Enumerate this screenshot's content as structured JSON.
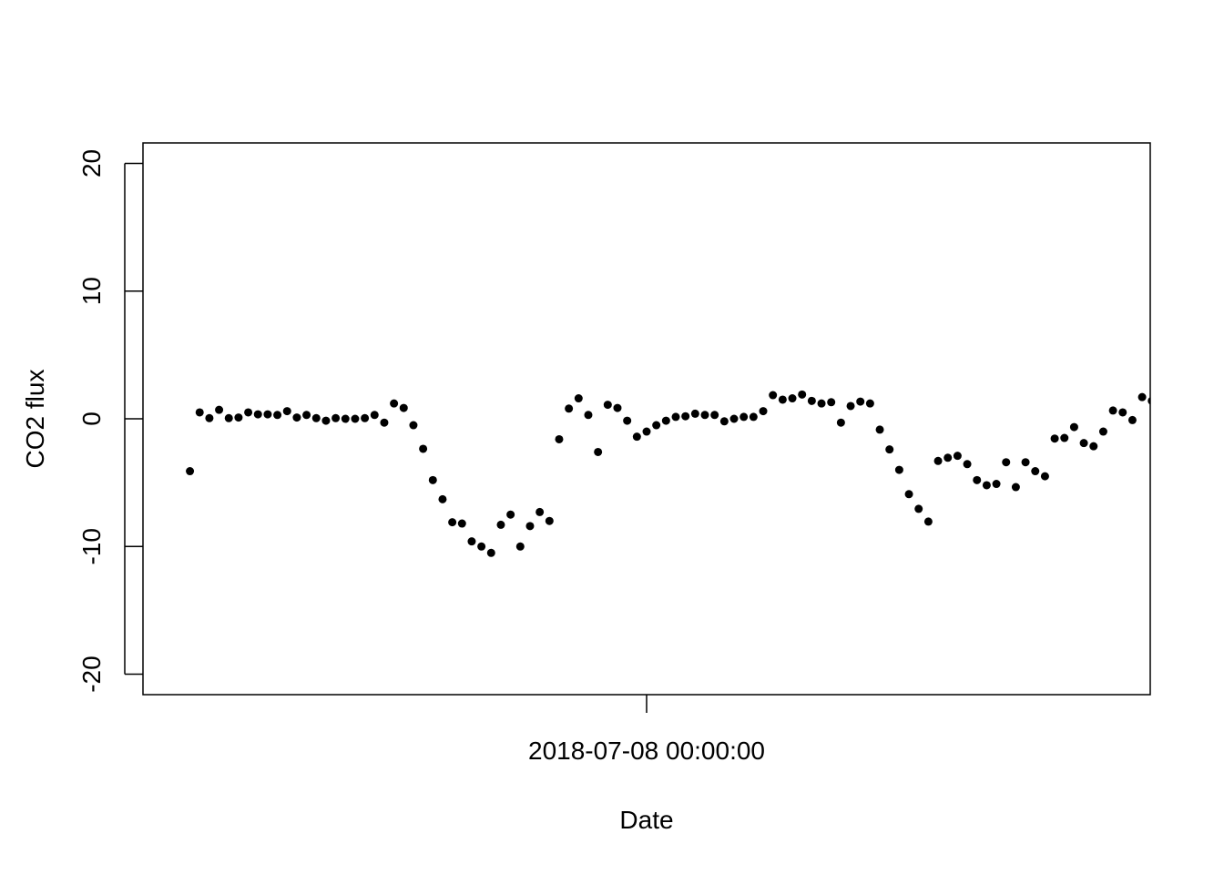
{
  "chart_data": {
    "type": "scatter",
    "x_label": "Date",
    "y_label": "CO2 flux",
    "x": [
      "2018-07-07 00:30:00",
      "2018-07-07 01:00:00",
      "2018-07-07 01:30:00",
      "2018-07-07 02:00:00",
      "2018-07-07 02:30:00",
      "2018-07-07 03:00:00",
      "2018-07-07 03:30:00",
      "2018-07-07 04:00:00",
      "2018-07-07 04:30:00",
      "2018-07-07 05:00:00",
      "2018-07-07 05:30:00",
      "2018-07-07 06:00:00",
      "2018-07-07 06:30:00",
      "2018-07-07 07:00:00",
      "2018-07-07 07:30:00",
      "2018-07-07 08:00:00",
      "2018-07-07 08:30:00",
      "2018-07-07 09:00:00",
      "2018-07-07 09:30:00",
      "2018-07-07 10:00:00",
      "2018-07-07 10:30:00",
      "2018-07-07 11:00:00",
      "2018-07-07 11:30:00",
      "2018-07-07 12:00:00",
      "2018-07-07 12:30:00",
      "2018-07-07 13:00:00",
      "2018-07-07 13:30:00",
      "2018-07-07 14:00:00",
      "2018-07-07 14:30:00",
      "2018-07-07 15:00:00",
      "2018-07-07 15:30:00",
      "2018-07-07 16:00:00",
      "2018-07-07 16:30:00",
      "2018-07-07 17:00:00",
      "2018-07-07 17:30:00",
      "2018-07-07 18:00:00",
      "2018-07-07 18:30:00",
      "2018-07-07 19:00:00",
      "2018-07-07 19:30:00",
      "2018-07-07 20:00:00",
      "2018-07-07 20:30:00",
      "2018-07-07 21:00:00",
      "2018-07-07 21:30:00",
      "2018-07-07 22:00:00",
      "2018-07-07 22:30:00",
      "2018-07-07 23:00:00",
      "2018-07-07 23:30:00",
      "2018-07-08 00:00:00",
      "2018-07-08 00:30:00",
      "2018-07-08 01:00:00",
      "2018-07-08 01:30:00",
      "2018-07-08 02:00:00",
      "2018-07-08 02:30:00",
      "2018-07-08 03:00:00",
      "2018-07-08 03:30:00",
      "2018-07-08 04:00:00",
      "2018-07-08 04:30:00",
      "2018-07-08 05:00:00",
      "2018-07-08 05:30:00",
      "2018-07-08 06:00:00",
      "2018-07-08 06:30:00",
      "2018-07-08 07:00:00",
      "2018-07-08 07:30:00",
      "2018-07-08 08:00:00",
      "2018-07-08 08:30:00",
      "2018-07-08 09:00:00",
      "2018-07-08 09:30:00",
      "2018-07-08 10:00:00",
      "2018-07-08 10:30:00",
      "2018-07-08 11:00:00",
      "2018-07-08 11:30:00",
      "2018-07-08 12:00:00",
      "2018-07-08 12:30:00",
      "2018-07-08 13:00:00",
      "2018-07-08 13:30:00",
      "2018-07-08 14:00:00",
      "2018-07-08 14:30:00",
      "2018-07-08 15:00:00",
      "2018-07-08 15:30:00",
      "2018-07-08 16:00:00",
      "2018-07-08 16:30:00",
      "2018-07-08 17:00:00",
      "2018-07-08 17:30:00",
      "2018-07-08 18:00:00",
      "2018-07-08 18:30:00",
      "2018-07-08 19:00:00",
      "2018-07-08 19:30:00",
      "2018-07-08 20:00:00",
      "2018-07-08 20:30:00",
      "2018-07-08 21:00:00",
      "2018-07-08 21:30:00",
      "2018-07-08 22:00:00",
      "2018-07-08 22:30:00",
      "2018-07-08 23:00:00",
      "2018-07-08 23:30:00",
      "2018-07-09 00:00:00",
      "2018-07-09 00:30:00",
      "2018-07-09 01:00:00",
      "2018-07-09 01:30:00",
      "2018-07-09 02:00:00"
    ],
    "values": [
      -4.1,
      0.5,
      0.05,
      0.7,
      0.05,
      0.1,
      0.5,
      0.35,
      0.35,
      0.3,
      0.6,
      0.1,
      0.3,
      0.05,
      -0.15,
      0.05,
      0,
      0,
      0.05,
      0.3,
      -0.3,
      1.2,
      0.85,
      -0.5,
      -2.35,
      -4.8,
      -6.3,
      -8.1,
      -8.2,
      -9.6,
      -10.0,
      -10.5,
      -8.3,
      -7.5,
      -10.0,
      -8.4,
      -7.3,
      -8.0,
      -1.6,
      0.8,
      1.6,
      0.3,
      -2.6,
      1.1,
      0.85,
      -0.15,
      -1.4,
      -1.0,
      -0.5,
      -0.15,
      0.15,
      0.2,
      0.4,
      0.3,
      0.3,
      -0.2,
      0,
      0.15,
      0.15,
      0.6,
      1.85,
      1.5,
      1.6,
      1.9,
      1.4,
      1.2,
      1.3,
      -0.3,
      1.0,
      1.35,
      1.2,
      -0.85,
      -2.4,
      -4.0,
      -5.9,
      -7.05,
      -8.05,
      -3.3,
      -3.05,
      -2.9,
      -3.55,
      -4.8,
      -5.2,
      -5.1,
      -3.4,
      -5.35,
      -3.4,
      -4.1,
      -4.5,
      -1.55,
      -1.5,
      -0.65,
      -1.9,
      -2.15,
      -1.0,
      0.65,
      0.5,
      -0.1,
      1.7,
      1.4
    ],
    "color": "#000000",
    "xlim": [
      "2018-07-06 22:05:00",
      "2018-07-09 01:55:00"
    ],
    "xticks": [
      "2018-07-08 00:00:00"
    ],
    "ylim": [
      -21.6,
      21.6
    ],
    "yticks": [
      -20,
      -10,
      0,
      10,
      20
    ]
  }
}
